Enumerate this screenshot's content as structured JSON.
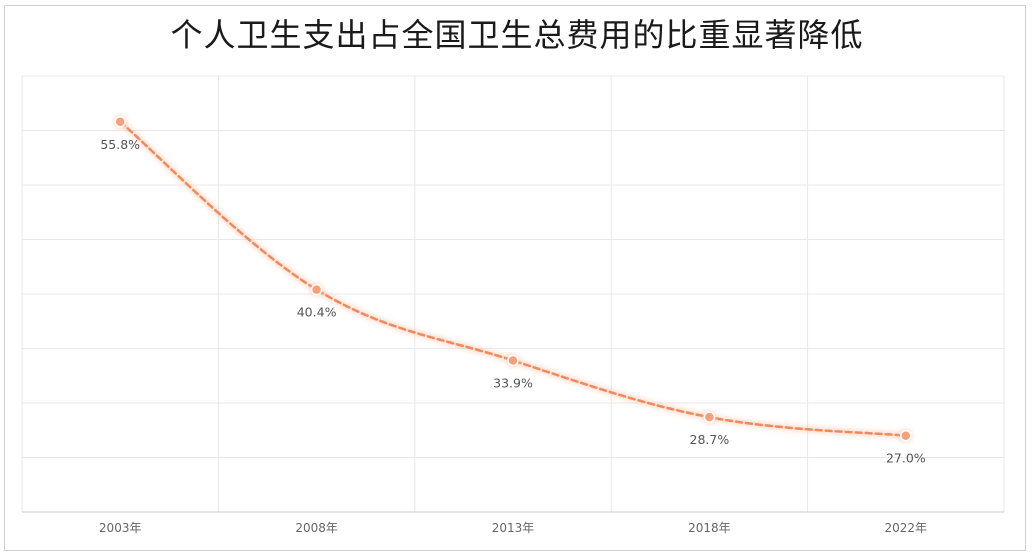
{
  "chart_data": {
    "type": "line",
    "title": "个人卫生支出占全国卫生总费用的比重显著降低",
    "categories": [
      "2003年",
      "2008年",
      "2013年",
      "2018年",
      "2022年"
    ],
    "x": [
      2003,
      2008,
      2013,
      2018,
      2022
    ],
    "series": [
      {
        "values": [
          55.8,
          40.4,
          33.9,
          28.7,
          27.0
        ],
        "labels": [
          "55.8%",
          "40.4%",
          "33.9%",
          "28.7%",
          "27.0%"
        ]
      }
    ],
    "ylim": [
      20,
      60
    ],
    "grid": true,
    "smooth": true,
    "line_style": "dashed",
    "colors": {
      "line": "#f08a5d",
      "marker_fill": "#f4a07a",
      "marker_stroke": "#ffffff",
      "glow": "#f7c3a8"
    }
  }
}
